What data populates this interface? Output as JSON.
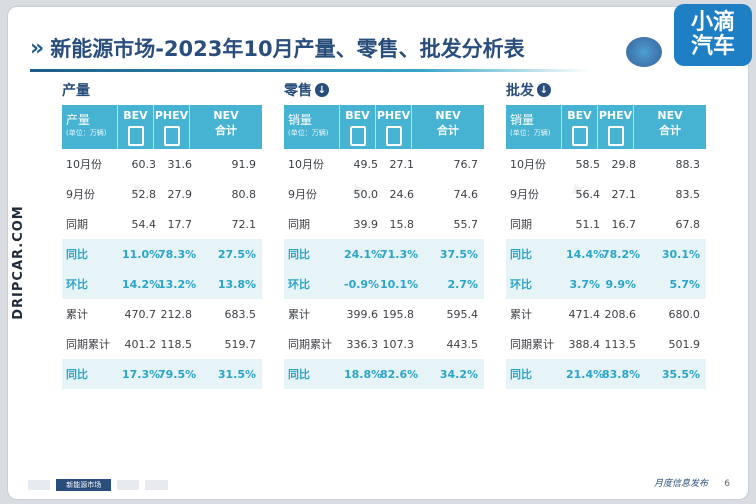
{
  "page": {
    "title": "新能源市场-2023年10月产量、零售、批发分析表",
    "logo_line1": "小滴",
    "logo_line2": "汽车",
    "side_watermark": "DRIPCAR.COM",
    "footer_tabs": [
      "",
      "新能源市场",
      "",
      ""
    ],
    "footer_right": "月度信息发布",
    "page_number": "6"
  },
  "header": {
    "metric": [
      "产量",
      "销量",
      "销量"
    ],
    "unit": "(单位：万辆)",
    "bev": "BEV",
    "phev": "PHEV",
    "nev": "NEV",
    "nev_sub": "合计"
  },
  "sections": [
    {
      "title": "产量",
      "rows": [
        {
          "label": "10月份",
          "bev": "60.3",
          "phev": "31.6",
          "nev": "91.9",
          "hl": false
        },
        {
          "label": "9月份",
          "bev": "52.8",
          "phev": "27.9",
          "nev": "80.8",
          "hl": false
        },
        {
          "label": "同期",
          "bev": "54.4",
          "phev": "17.7",
          "nev": "72.1",
          "hl": false
        },
        {
          "label": "同比",
          "bev": "11.0%",
          "phev": "78.3%",
          "nev": "27.5%",
          "hl": true
        },
        {
          "label": "环比",
          "bev": "14.2%",
          "phev": "13.2%",
          "nev": "13.8%",
          "hl": true
        },
        {
          "label": "累计",
          "bev": "470.7",
          "phev": "212.8",
          "nev": "683.5",
          "hl": false
        },
        {
          "label": "同期累计",
          "bev": "401.2",
          "phev": "118.5",
          "nev": "519.7",
          "hl": false
        },
        {
          "label": "同比",
          "bev": "17.3%",
          "phev": "79.5%",
          "nev": "31.5%",
          "hl": true
        }
      ]
    },
    {
      "title": "零售",
      "rows": [
        {
          "label": "10月份",
          "bev": "49.5",
          "phev": "27.1",
          "nev": "76.7",
          "hl": false
        },
        {
          "label": "9月份",
          "bev": "50.0",
          "phev": "24.6",
          "nev": "74.6",
          "hl": false
        },
        {
          "label": "同期",
          "bev": "39.9",
          "phev": "15.8",
          "nev": "55.7",
          "hl": false
        },
        {
          "label": "同比",
          "bev": "24.1%",
          "phev": "71.3%",
          "nev": "37.5%",
          "hl": true
        },
        {
          "label": "环比",
          "bev": "-0.9%",
          "phev": "10.1%",
          "nev": "2.7%",
          "hl": true
        },
        {
          "label": "累计",
          "bev": "399.6",
          "phev": "195.8",
          "nev": "595.4",
          "hl": false
        },
        {
          "label": "同期累计",
          "bev": "336.3",
          "phev": "107.3",
          "nev": "443.5",
          "hl": false
        },
        {
          "label": "同比",
          "bev": "18.8%",
          "phev": "82.6%",
          "nev": "34.2%",
          "hl": true
        }
      ]
    },
    {
      "title": "批发",
      "rows": [
        {
          "label": "10月份",
          "bev": "58.5",
          "phev": "29.8",
          "nev": "88.3",
          "hl": false
        },
        {
          "label": "9月份",
          "bev": "56.4",
          "phev": "27.1",
          "nev": "83.5",
          "hl": false
        },
        {
          "label": "同期",
          "bev": "51.1",
          "phev": "16.7",
          "nev": "67.8",
          "hl": false
        },
        {
          "label": "同比",
          "bev": "14.4%",
          "phev": "78.2%",
          "nev": "30.1%",
          "hl": true
        },
        {
          "label": "环比",
          "bev": "3.7%",
          "phev": "9.9%",
          "nev": "5.7%",
          "hl": true
        },
        {
          "label": "累计",
          "bev": "471.4",
          "phev": "208.6",
          "nev": "680.0",
          "hl": false
        },
        {
          "label": "同期累计",
          "bev": "388.4",
          "phev": "113.5",
          "nev": "501.9",
          "hl": false
        },
        {
          "label": "同比",
          "bev": "21.4%",
          "phev": "83.8%",
          "nev": "35.5%",
          "hl": true
        }
      ]
    }
  ],
  "colors": {
    "accent": "#47b3d3",
    "title": "#2a4e7c",
    "highlight_text": "#2ca4c7",
    "highlight_bg": "#e6f4f8",
    "logo_bg": "#1f7fc4"
  }
}
